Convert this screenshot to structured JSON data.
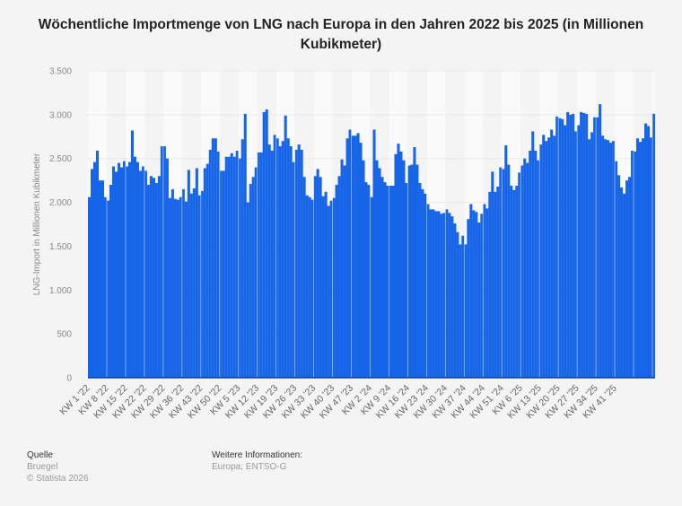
{
  "chart_data": {
    "type": "bar",
    "title": "Wöchentliche Importmenge von LNG nach Europa in den Jahren 2022 bis 2025 (in Millionen Kubikmeter)",
    "xlabel": "",
    "ylabel": "LNG-Import in Millionen Kubikmeter",
    "ylim": [
      0,
      3500
    ],
    "yticks": [
      0,
      500,
      1000,
      1500,
      2000,
      2500,
      3000,
      3500
    ],
    "ytick_labels": [
      "0",
      "500",
      "1.000",
      "1.500",
      "2.000",
      "2.500",
      "3.000",
      "3.500"
    ],
    "xtick_labels": [
      "KW 1 '22",
      "KW 8 '22",
      "KW 15 '22",
      "KW 22 '22",
      "KW 29 '22",
      "KW 36 '22",
      "KW 43 '22",
      "KW 50 '22",
      "KW 5 '23",
      "KW 12 '23",
      "KW 19 '23",
      "KW 26 '23",
      "KW 33 '23",
      "KW 40 '23",
      "KW 47 '23",
      "KW 2 '24",
      "KW 9 '24",
      "KW 16 '24",
      "KW 23 '24",
      "KW 30 '24",
      "KW 37 '24",
      "KW 44 '24",
      "KW 51 '24",
      "KW 6 '25",
      "KW 13 '25",
      "KW 20 '25",
      "KW 27 '25",
      "KW 34 '25",
      "KW 41 '25"
    ],
    "grid": true,
    "color": "#1664e8",
    "values": [
      2060,
      2380,
      2460,
      2590,
      2250,
      2250,
      2060,
      2020,
      2200,
      2410,
      2350,
      2450,
      2400,
      2470,
      2410,
      2460,
      2820,
      2520,
      2460,
      2360,
      2410,
      2360,
      2200,
      2300,
      2280,
      2220,
      2300,
      2640,
      2640,
      2500,
      2050,
      2150,
      2040,
      2030,
      2060,
      2150,
      2010,
      2370,
      2100,
      2160,
      2390,
      2080,
      2130,
      2390,
      2440,
      2600,
      2730,
      2730,
      2580,
      2360,
      2360,
      2520,
      2520,
      2560,
      2520,
      2590,
      2500,
      2720,
      3010,
      2000,
      2210,
      2290,
      2400,
      2570,
      2570,
      3030,
      3060,
      2660,
      2590,
      2770,
      2730,
      2640,
      2700,
      2990,
      2730,
      2640,
      2460,
      2600,
      2660,
      2600,
      2290,
      2080,
      2060,
      2030,
      2300,
      2380,
      2290,
      2070,
      2120,
      1960,
      2020,
      2050,
      2200,
      2300,
      2490,
      2420,
      2730,
      2830,
      2760,
      2760,
      2790,
      2680,
      2480,
      2230,
      2200,
      2060,
      2830,
      2480,
      2390,
      2290,
      2230,
      2190,
      2190,
      2190,
      2550,
      2670,
      2580,
      2480,
      2220,
      2420,
      2430,
      2630,
      2430,
      2220,
      2150,
      2100,
      1980,
      1920,
      1920,
      1900,
      1900,
      1870,
      1880,
      1920,
      1880,
      1840,
      1760,
      1660,
      1520,
      1620,
      1520,
      1810,
      1980,
      1910,
      1890,
      1770,
      1870,
      1980,
      1930,
      2120,
      2350,
      2120,
      2180,
      2400,
      2380,
      2650,
      2430,
      2190,
      2140,
      2190,
      2340,
      2420,
      2500,
      2450,
      2590,
      2810,
      2590,
      2480,
      2660,
      2770,
      2700,
      2740,
      2830,
      2760,
      2980,
      2960,
      2950,
      2880,
      3030,
      3000,
      3010,
      2810,
      2880,
      3030,
      3020,
      3010,
      2720,
      2800,
      2970,
      2970,
      3120,
      2760,
      2720,
      2710,
      2680,
      2700,
      2470,
      2310,
      2170,
      2100,
      2250,
      2290,
      2590,
      2580,
      2730,
      2690,
      2730,
      2900,
      2870,
      2740,
      3010
    ],
    "source_label": "Quelle",
    "source": "Bruegel",
    "copyright": "© Statista 2026",
    "info_label": "Weitere Informationen:",
    "info": "Europa; ENTSO-G"
  }
}
